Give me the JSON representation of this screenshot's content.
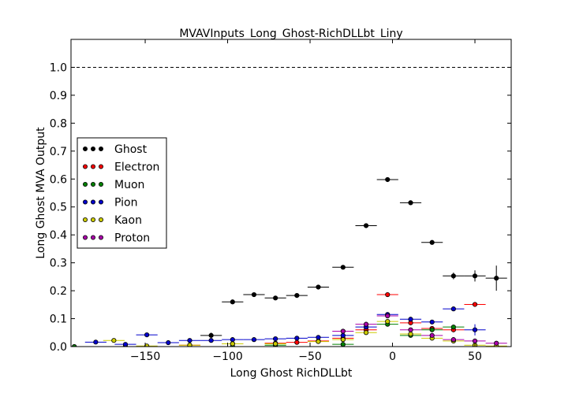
{
  "chart_data": {
    "type": "scatter",
    "title": "MVAVInputs_Long_Ghost-RichDLLbt_Liny",
    "xlabel": "Long Ghost RichDLLbt",
    "ylabel": "Long Ghost MVA Output",
    "xlim": [
      -195,
      72
    ],
    "ylim": [
      0.0,
      1.1
    ],
    "x_ticks": [
      -150,
      -100,
      -50,
      0,
      50
    ],
    "x_tick_labels": [
      "−150",
      "−100",
      "−50",
      "0",
      "50"
    ],
    "y_ticks": [
      0.0,
      0.1,
      0.2,
      0.3,
      0.4,
      0.5,
      0.6,
      0.7,
      0.8,
      0.9,
      1.0
    ],
    "y_tick_labels": [
      "0.0",
      "0.1",
      "0.2",
      "0.3",
      "0.4",
      "0.5",
      "0.6",
      "0.7",
      "0.8",
      "0.9",
      "1.0"
    ],
    "reference_line": 1.0,
    "grid": false,
    "legend_position": "center-left",
    "bin_half_width": 6.5,
    "series": [
      {
        "name": "Ghost",
        "color": "#000000",
        "x": [
          -110,
          -97,
          -84,
          -71,
          -58,
          -45,
          -30,
          -16,
          -3,
          11,
          24,
          37,
          50,
          63
        ],
        "y": [
          0.04,
          0.16,
          0.186,
          0.174,
          0.183,
          0.213,
          0.284,
          0.433,
          0.598,
          0.515,
          0.373,
          0.253,
          0.253,
          0.245
        ],
        "yerr": [
          0.01,
          0.008,
          0.007,
          0.007,
          0.007,
          0.007,
          0.006,
          0.006,
          0.005,
          0.006,
          0.008,
          0.012,
          0.02,
          0.045
        ]
      },
      {
        "name": "Electron",
        "color": "#ff0000",
        "x": [
          -123,
          -97,
          -71,
          -58,
          -45,
          -30,
          -16,
          -3,
          11,
          24,
          37,
          50
        ],
        "y": [
          0.005,
          0.01,
          0.012,
          0.015,
          0.02,
          0.03,
          0.06,
          0.186,
          0.085,
          0.065,
          0.06,
          0.151
        ],
        "yerr": [
          0.003,
          0.003,
          0.003,
          0.003,
          0.004,
          0.004,
          0.005,
          0.006,
          0.006,
          0.006,
          0.008,
          0.008
        ]
      },
      {
        "name": "Muon",
        "color": "#008000",
        "x": [
          -193,
          -162,
          -97,
          -71,
          -30,
          -3,
          11,
          24,
          37,
          50
        ],
        "y": [
          0.0,
          0.0,
          0.0,
          0.005,
          0.008,
          0.08,
          0.04,
          0.06,
          0.07,
          0.0
        ],
        "yerr": [
          0.002,
          0.002,
          0.002,
          0.003,
          0.003,
          0.006,
          0.005,
          0.006,
          0.008,
          0.004
        ]
      },
      {
        "name": "Pion",
        "color": "#0000cc",
        "x": [
          -180,
          -162,
          -149,
          -136,
          -123,
          -110,
          -97,
          -84,
          -71,
          -58,
          -45,
          -30,
          -16,
          -3,
          11,
          24,
          37,
          50
        ],
        "y": [
          0.016,
          0.008,
          0.042,
          0.014,
          0.022,
          0.022,
          0.025,
          0.025,
          0.028,
          0.03,
          0.033,
          0.04,
          0.07,
          0.115,
          0.098,
          0.088,
          0.135,
          0.06
        ],
        "yerr": [
          0.003,
          0.003,
          0.004,
          0.003,
          0.003,
          0.003,
          0.003,
          0.003,
          0.003,
          0.003,
          0.003,
          0.004,
          0.005,
          0.005,
          0.005,
          0.006,
          0.008,
          0.02
        ]
      },
      {
        "name": "Kaon",
        "color": "#cccc00",
        "x": [
          -169,
          -149,
          -123,
          -97,
          -71,
          -45,
          -30,
          -16,
          -3,
          11,
          24,
          37,
          50,
          63
        ],
        "y": [
          0.022,
          0.002,
          0.005,
          0.01,
          0.01,
          0.018,
          0.025,
          0.05,
          0.09,
          0.045,
          0.03,
          0.02,
          0.005,
          0.002
        ],
        "yerr": [
          0.003,
          0.002,
          0.002,
          0.003,
          0.003,
          0.003,
          0.004,
          0.005,
          0.005,
          0.005,
          0.005,
          0.005,
          0.004,
          0.003
        ]
      },
      {
        "name": "Proton",
        "color": "#aa00aa",
        "x": [
          -30,
          -16,
          -3,
          11,
          24,
          37,
          50,
          63
        ],
        "y": [
          0.055,
          0.08,
          0.11,
          0.06,
          0.04,
          0.025,
          0.02,
          0.012
        ],
        "yerr": [
          0.004,
          0.005,
          0.005,
          0.005,
          0.005,
          0.005,
          0.005,
          0.004
        ]
      }
    ]
  }
}
